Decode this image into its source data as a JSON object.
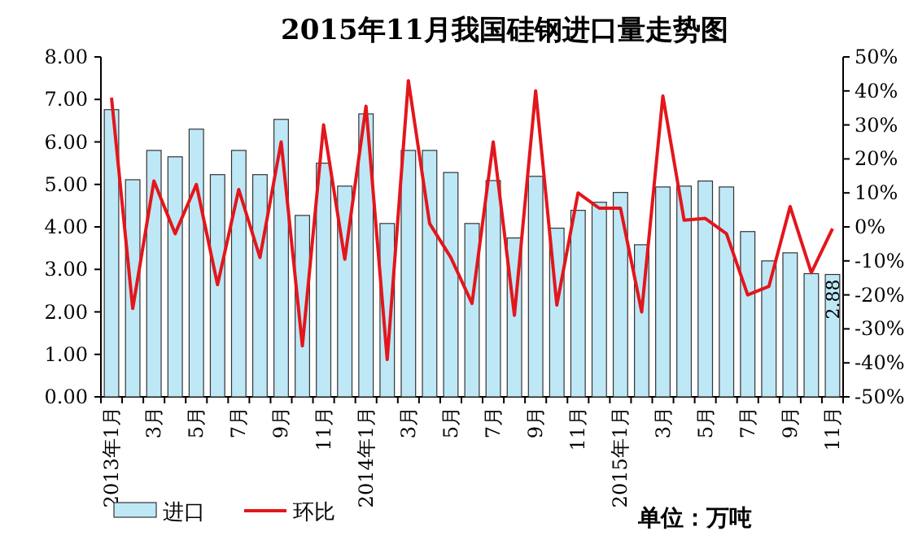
{
  "chart_data": {
    "type": "bar",
    "title": "2015年11月我国硅钢进口量走势图",
    "categories": [
      "2013年1月",
      null,
      "3月",
      null,
      "5月",
      null,
      "7月",
      null,
      "9月",
      null,
      "11月",
      null,
      "2014年1月",
      null,
      "3月",
      null,
      "5月",
      null,
      "7月",
      null,
      "9月",
      null,
      "11月",
      null,
      "2015年1月",
      null,
      "3月",
      null,
      "5月",
      null,
      "7月",
      null,
      "9月",
      null,
      "11月"
    ],
    "series": [
      {
        "name": "进口",
        "type": "bar",
        "color": "#bfe8f7",
        "values": [
          6.76,
          5.11,
          5.8,
          5.65,
          6.3,
          5.23,
          5.8,
          5.23,
          6.53,
          4.27,
          5.5,
          4.96,
          6.66,
          4.08,
          5.8,
          5.8,
          5.28,
          4.08,
          5.09,
          3.74,
          5.19,
          3.97,
          4.39,
          4.58,
          4.81,
          3.58,
          4.94,
          4.96,
          5.08,
          4.94,
          3.89,
          3.2,
          3.39,
          2.9,
          2.88
        ],
        "value_labels": [
          null,
          null,
          null,
          null,
          null,
          null,
          null,
          null,
          null,
          null,
          null,
          null,
          null,
          null,
          null,
          null,
          null,
          null,
          null,
          null,
          null,
          null,
          null,
          null,
          null,
          null,
          null,
          null,
          null,
          null,
          null,
          null,
          null,
          null,
          "2.88"
        ]
      },
      {
        "name": "环比",
        "type": "line",
        "axis": "y2",
        "color": "#e3161c",
        "values": [
          38,
          -24,
          13.5,
          -2,
          12.5,
          -17,
          11,
          -9,
          25,
          -35,
          30,
          -9.5,
          35.5,
          -39,
          43,
          1,
          -9,
          -22.5,
          25,
          -26,
          40,
          -23,
          10,
          5.5,
          5.5,
          -25,
          38.5,
          2,
          2.5,
          -2,
          -20,
          -17.5,
          6,
          -13.5,
          -0.5
        ]
      }
    ],
    "ylim": [
      0,
      8
    ],
    "yticks": [
      {
        "value": 0,
        "label": "0.00"
      },
      {
        "value": 1,
        "label": "1.00"
      },
      {
        "value": 2,
        "label": "2.00"
      },
      {
        "value": 3,
        "label": "3.00"
      },
      {
        "value": 4,
        "label": "4.00"
      },
      {
        "value": 5,
        "label": "5.00"
      },
      {
        "value": 6,
        "label": "6.00"
      },
      {
        "value": 7,
        "label": "7.00"
      },
      {
        "value": 8,
        "label": "8.00"
      }
    ],
    "y2lim": [
      -50,
      50
    ],
    "y2ticks": [
      {
        "value": -50,
        "label": "-50%"
      },
      {
        "value": -40,
        "label": "-40%"
      },
      {
        "value": -30,
        "label": "-30%"
      },
      {
        "value": -20,
        "label": "-20%"
      },
      {
        "value": -10,
        "label": "-10%"
      },
      {
        "value": 0,
        "label": "0%"
      },
      {
        "value": 10,
        "label": "10%"
      },
      {
        "value": 20,
        "label": "20%"
      },
      {
        "value": 30,
        "label": "30%"
      },
      {
        "value": 40,
        "label": "40%"
      },
      {
        "value": 50,
        "label": "50%"
      }
    ],
    "legend": "bottom",
    "annotations": [
      "单位：万吨"
    ]
  }
}
